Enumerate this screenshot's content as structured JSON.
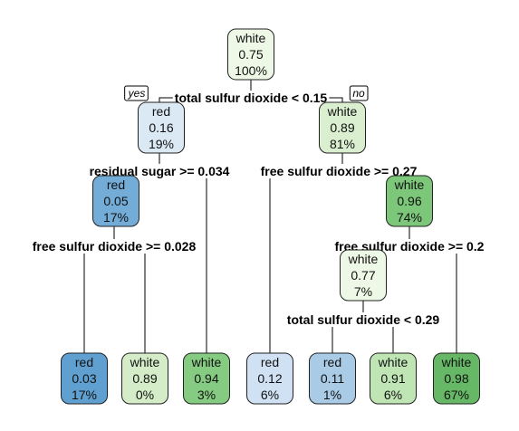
{
  "tree": {
    "yes_label": "yes",
    "no_label": "no",
    "nodes": [
      {
        "id": "n1",
        "cls": "white",
        "prob": "0.75",
        "pct": "100%",
        "fill": "#eef8e6"
      },
      {
        "id": "n2",
        "cls": "red",
        "prob": "0.16",
        "pct": "19%",
        "fill": "#dbe9f5"
      },
      {
        "id": "n3",
        "cls": "white",
        "prob": "0.89",
        "pct": "81%",
        "fill": "#d9efcf"
      },
      {
        "id": "n4",
        "cls": "red",
        "prob": "0.05",
        "pct": "17%",
        "fill": "#73acd6"
      },
      {
        "id": "n7",
        "cls": "white",
        "prob": "0.96",
        "pct": "74%",
        "fill": "#7cc779"
      },
      {
        "id": "n14",
        "cls": "white",
        "prob": "0.77",
        "pct": "7%",
        "fill": "#eef8e6"
      },
      {
        "id": "l1",
        "cls": "red",
        "prob": "0.03",
        "pct": "17%",
        "fill": "#5fa0d0"
      },
      {
        "id": "l2",
        "cls": "white",
        "prob": "0.89",
        "pct": "0%",
        "fill": "#d4edc8"
      },
      {
        "id": "l3",
        "cls": "white",
        "prob": "0.94",
        "pct": "3%",
        "fill": "#86cb82"
      },
      {
        "id": "l4",
        "cls": "red",
        "prob": "0.12",
        "pct": "6%",
        "fill": "#cfe1f2"
      },
      {
        "id": "l5",
        "cls": "red",
        "prob": "0.11",
        "pct": "1%",
        "fill": "#a9cbe6"
      },
      {
        "id": "l6",
        "cls": "white",
        "prob": "0.91",
        "pct": "6%",
        "fill": "#bfe5b4"
      },
      {
        "id": "l7",
        "cls": "white",
        "prob": "0.98",
        "pct": "67%",
        "fill": "#66b866"
      }
    ],
    "splits": [
      {
        "id": "s1",
        "label": "total sulfur dioxide < 0.15"
      },
      {
        "id": "s2",
        "label": "residual sugar >= 0.034"
      },
      {
        "id": "s3",
        "label": "free sulfur dioxide >= 0.27"
      },
      {
        "id": "s4",
        "label": "free sulfur dioxide >= 0.028"
      },
      {
        "id": "s7",
        "label": "free sulfur dioxide >= 0.2"
      },
      {
        "id": "s14",
        "label": "total sulfur dioxide < 0.29"
      }
    ]
  }
}
